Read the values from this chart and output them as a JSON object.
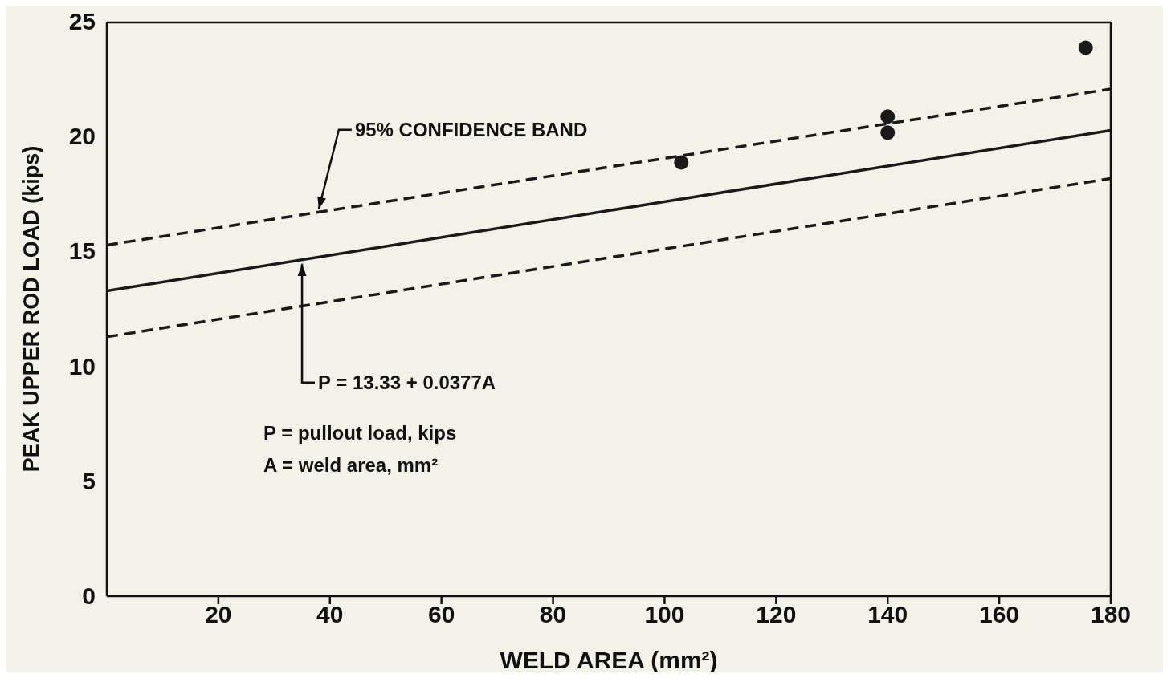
{
  "chart_data": {
    "type": "scatter",
    "xlabel": "WELD AREA (mm²)",
    "ylabel": "PEAK UPPER ROD LOAD (kips)",
    "xlim": [
      0,
      180
    ],
    "ylim": [
      0,
      25
    ],
    "xticks": [
      20,
      40,
      60,
      80,
      100,
      120,
      140,
      160,
      180
    ],
    "yticks": [
      0,
      5,
      10,
      15,
      20,
      25
    ],
    "grid": false,
    "legend": false,
    "series": [
      {
        "type": "scatter",
        "color": "#1a1a1a",
        "marker": "circle",
        "x": [
          103,
          140,
          140,
          175.5
        ],
        "values": [
          18.9,
          20.9,
          20.2,
          23.9
        ]
      },
      {
        "type": "line",
        "color": "#1a1a1a",
        "line_style": "solid",
        "x": [
          0,
          180
        ],
        "values": [
          13.3,
          20.3
        ]
      },
      {
        "type": "line",
        "color": "#1a1a1a",
        "line_style": "dashed",
        "x": [
          0,
          180
        ],
        "values": [
          15.3,
          22.1
        ]
      },
      {
        "type": "line",
        "color": "#1a1a1a",
        "line_style": "dashed",
        "x": [
          0,
          180
        ],
        "values": [
          11.3,
          18.2
        ]
      }
    ],
    "annotations": [
      {
        "text": "95% CONFIDENCE BAND",
        "x": 38,
        "y": 16.7
      },
      {
        "text": "P = 13.33 + 0.0377A",
        "x": 35,
        "y": 14.6
      },
      "P = pullout load, kips",
      "A = weld area, mm²"
    ]
  }
}
